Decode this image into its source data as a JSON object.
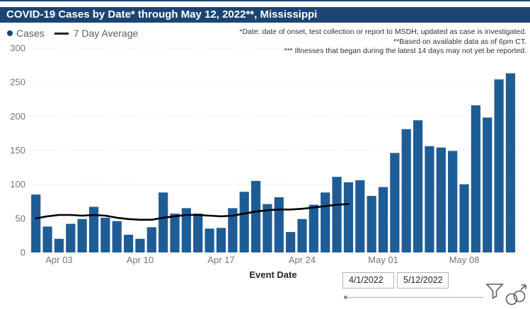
{
  "window": {
    "title_bar": "COVID-19 Cases by Date* through May 12, 2022**, Mississippi"
  },
  "legend": {
    "cases_label": "Cases",
    "avg_label": "7 Day Average"
  },
  "notes": {
    "line1": "*Date: date of onset, test collection or report to MSDH; updated as case is investigated.",
    "line2": "**Based on available data as of 6pm CT.",
    "line3": "*** Illnesses that began during the latest 14 days may not yet be reported."
  },
  "chart_data": {
    "type": "bar",
    "title": "COVID-19 Cases by Date* through May 12, 2022**, Mississippi",
    "xlabel": "Event Date",
    "ylabel": "",
    "ylim": [
      0,
      300
    ],
    "y_ticks": [
      0,
      50,
      100,
      150,
      200,
      250,
      300
    ],
    "grid": "dotted-horizontal",
    "legend_position": "top-left",
    "categories": [
      "Apr 1",
      "Apr 2",
      "Apr 3",
      "Apr 4",
      "Apr 5",
      "Apr 6",
      "Apr 7",
      "Apr 8",
      "Apr 9",
      "Apr 10",
      "Apr 11",
      "Apr 12",
      "Apr 13",
      "Apr 14",
      "Apr 15",
      "Apr 16",
      "Apr 17",
      "Apr 18",
      "Apr 19",
      "Apr 20",
      "Apr 21",
      "Apr 22",
      "Apr 23",
      "Apr 24",
      "Apr 25",
      "Apr 26",
      "Apr 27",
      "Apr 28",
      "Apr 29",
      "Apr 30",
      "May 1",
      "May 2",
      "May 3",
      "May 4",
      "May 5",
      "May 6",
      "May 7",
      "May 8",
      "May 9",
      "May 10",
      "May 11",
      "May 12"
    ],
    "x_tick_labels": [
      "Apr 03",
      "Apr 10",
      "Apr 17",
      "Apr 24",
      "May 01",
      "May 08"
    ],
    "x_tick_day_indexes": [
      2,
      9,
      16,
      23,
      30,
      37
    ],
    "series": [
      {
        "name": "Cases",
        "kind": "bar",
        "values": [
          85,
          38,
          20,
          42,
          49,
          67,
          51,
          46,
          26,
          20,
          37,
          88,
          57,
          65,
          57,
          35,
          36,
          65,
          89,
          105,
          71,
          81,
          30,
          49,
          70,
          88,
          111,
          103,
          106,
          83,
          96,
          146,
          181,
          194,
          156,
          154,
          149,
          100,
          216,
          198,
          254,
          263
        ]
      },
      {
        "name": "7 Day Average",
        "kind": "line",
        "values": [
          50,
          53,
          55,
          55,
          54,
          55,
          54,
          51,
          49,
          48,
          48,
          51,
          53,
          55,
          55,
          54,
          53,
          54,
          57,
          60,
          62,
          63,
          63,
          64,
          66,
          68,
          70,
          71,
          null,
          null,
          null,
          null,
          null,
          null,
          null,
          null,
          null,
          null,
          null,
          null,
          null,
          null
        ]
      }
    ],
    "colors": {
      "bar": "#1e5c96",
      "line": "#000000",
      "grid": "#d9d9d9",
      "axis_text": "#767676",
      "header_bg": "#1a4473"
    }
  },
  "footer": {
    "axis_title": "Event Date",
    "date_start": "4/1/2022",
    "date_end": "5/12/2022"
  },
  "icons": {
    "filter": "filter-icon",
    "focus": "focus-mode-icon"
  }
}
